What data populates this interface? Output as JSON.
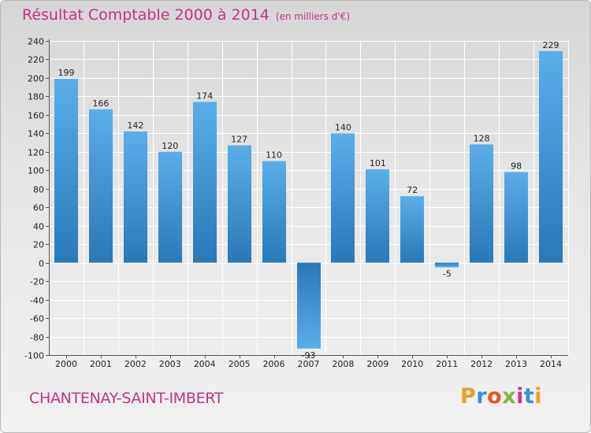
{
  "header": {
    "title": "Résultat Comptable 2000 à 2014",
    "subtitle": "(en milliers d'€)"
  },
  "footer": {
    "city": "CHANTENAY-SAINT-IMBERT",
    "logo_letters": [
      "P",
      "r",
      "o",
      "x",
      "i",
      "t",
      "i"
    ]
  },
  "colors": {
    "title": "#c4318a",
    "bar_light": "#5aaee8",
    "bar_dark": "#2a78b8",
    "logo": [
      "#e8a020",
      "#3a8fd0",
      "#e05a2a",
      "#7ab83a",
      "#c43a8a",
      "#3a8fd0",
      "#e8a020"
    ]
  },
  "chart_data": {
    "type": "bar",
    "title": "Résultat Comptable 2000 à 2014",
    "ylabel": "en milliers d'€",
    "xlabel": "",
    "categories": [
      "2000",
      "2001",
      "2002",
      "2003",
      "2004",
      "2005",
      "2006",
      "2007",
      "2008",
      "2009",
      "2010",
      "2011",
      "2012",
      "2013",
      "2014"
    ],
    "values": [
      199,
      166,
      142,
      120,
      174,
      127,
      110,
      -93,
      140,
      101,
      72,
      -5,
      128,
      98,
      229
    ],
    "ylim": [
      -100,
      240
    ],
    "yticks": [
      -100,
      -80,
      -60,
      -40,
      -20,
      0,
      20,
      40,
      60,
      80,
      100,
      120,
      140,
      160,
      180,
      200,
      220,
      240
    ],
    "grid": true
  }
}
